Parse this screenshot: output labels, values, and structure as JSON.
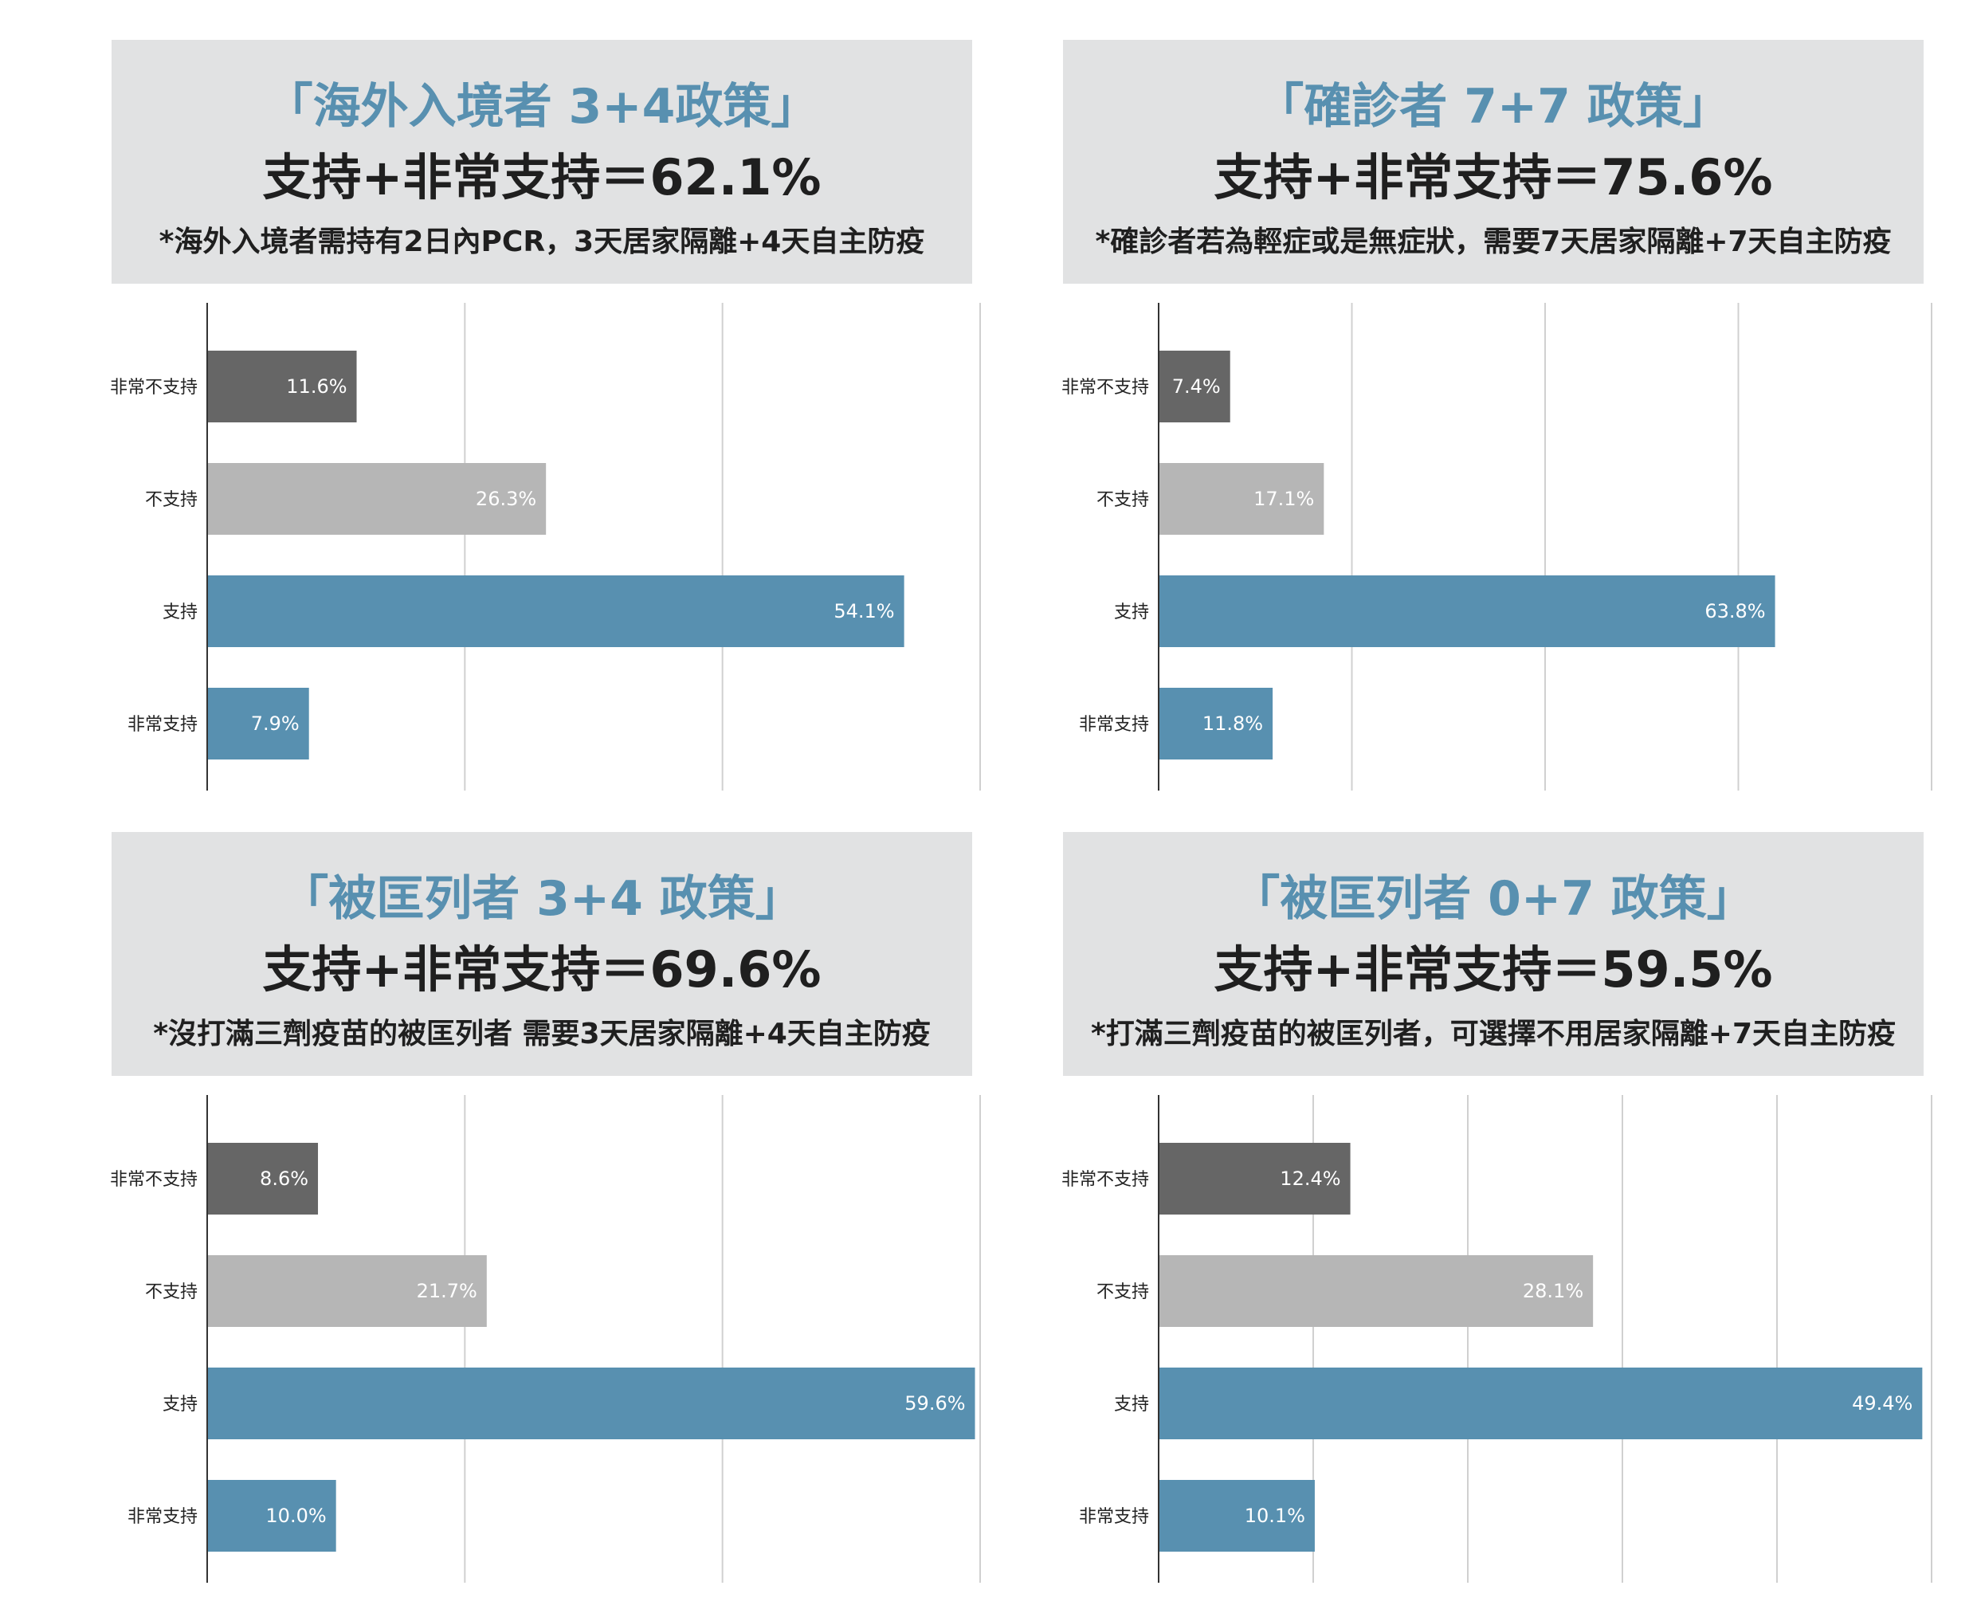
{
  "colors": {
    "header_bg": "#e1e2e3",
    "title_accent": "#5890b0",
    "strong_oppose": "#666666",
    "oppose": "#b6b6b6",
    "support": "#5890b0",
    "strong_support": "#5890b0",
    "gridline": "#d0d0d0",
    "axis": "#333333"
  },
  "panels": [
    {
      "title": "「海外入境者 3+4政策」",
      "total": "支持+非常支持＝62.1%",
      "note": "*海外入境者需持有2日內PCR，3天居家隔離+4天自主防疫"
    },
    {
      "title": "「確診者 7+7 政策」",
      "total": "支持+非常支持＝75.6%",
      "note": "*確診者若為輕症或是無症狀，需要7天居家隔離+7天自主防疫"
    },
    {
      "title": "「被匡列者 3+4 政策」",
      "total": "支持+非常支持＝69.6%",
      "note": "*沒打滿三劑疫苗的被匡列者 需要3天居家隔離+4天自主防疫"
    },
    {
      "title": "「被匡列者 0+7 政策」",
      "total": "支持+非常支持＝59.5%",
      "note": "*打滿三劑疫苗的被匡列者，可選擇不用居家隔離+7天自主防疫"
    }
  ],
  "chart_data": [
    {
      "type": "bar",
      "orientation": "horizontal",
      "categories": [
        "非常不支持",
        "不支持",
        "支持",
        "非常支持"
      ],
      "values": [
        11.6,
        26.3,
        54.1,
        7.9
      ],
      "value_labels": [
        "11.6%",
        "26.3%",
        "54.1%",
        "7.9%"
      ],
      "xlim": [
        0,
        60
      ],
      "grid": true,
      "gridlines": 3
    },
    {
      "type": "bar",
      "orientation": "horizontal",
      "categories": [
        "非常不支持",
        "不支持",
        "支持",
        "非常支持"
      ],
      "values": [
        7.4,
        17.1,
        63.8,
        11.8
      ],
      "value_labels": [
        "7.4%",
        "17.1%",
        "63.8%",
        "11.8%"
      ],
      "xlim": [
        0,
        80
      ],
      "grid": true,
      "gridlines": 4
    },
    {
      "type": "bar",
      "orientation": "horizontal",
      "categories": [
        "非常不支持",
        "不支持",
        "支持",
        "非常支持"
      ],
      "values": [
        8.6,
        21.7,
        59.6,
        10.0
      ],
      "value_labels": [
        "8.6%",
        "21.7%",
        "59.6%",
        "10.0%"
      ],
      "xlim": [
        0,
        60
      ],
      "grid": true,
      "gridlines": 3
    },
    {
      "type": "bar",
      "orientation": "horizontal",
      "categories": [
        "非常不支持",
        "不支持",
        "支持",
        "非常支持"
      ],
      "values": [
        12.4,
        28.1,
        49.4,
        10.1
      ],
      "value_labels": [
        "12.4%",
        "28.1%",
        "49.4%",
        "10.1%"
      ],
      "xlim": [
        0,
        50
      ],
      "grid": true,
      "gridlines": 5
    }
  ]
}
